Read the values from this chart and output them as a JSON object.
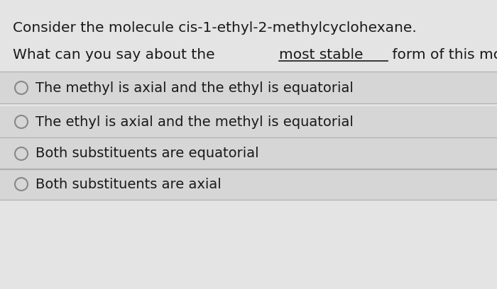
{
  "background_color": "#e4e4e4",
  "title_line1": "Consider the molecule cis-1-ethyl-2-methylcyclohexane.",
  "title_line2_before_underline": "What can you say about the ",
  "title_line2_underline": "most stable",
  "title_line2_after_underline": " form of this molecule?",
  "options": [
    "The methyl is axial and the ethyl is equatorial",
    "The ethyl is axial and the methyl is equatorial",
    "Both substituents are equatorial",
    "Both substituents are axial"
  ],
  "font_size_title": 14.5,
  "font_size_options": 14.0,
  "text_color": "#1a1a1a",
  "circle_color": "#888888",
  "line_color": "#b0b0b0",
  "option_bg": "#d6d6d6"
}
